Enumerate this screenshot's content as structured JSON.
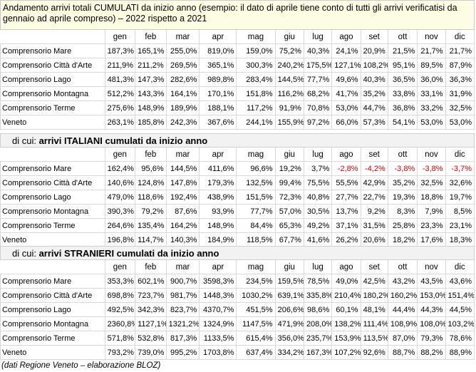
{
  "title": "Andamento arrivi totali CUMULATI da inizio anno (esempio: il dato di aprile tiene conto di tutti gli arrivi verificatisi da gennaio ad aprile compreso) – 2022 rispetto a 2021",
  "months": [
    "gen",
    "feb",
    "mar",
    "apr",
    "mag",
    "giu",
    "lug",
    "ago",
    "set",
    "ott",
    "nov",
    "dic"
  ],
  "tables": [
    {
      "section_prefix": "",
      "section_bold": "",
      "rows": [
        {
          "name": "Comprensorio Mare",
          "values": [
            "187,3%",
            "165,1%",
            "255,0%",
            "819,0%",
            "159,0%",
            "75,2%",
            "40,3%",
            "24,1%",
            "20,9%",
            "21,5%",
            "21,7%",
            "21,7%"
          ]
        },
        {
          "name": "Comprensorio Città d'Arte",
          "values": [
            "211,9%",
            "211,2%",
            "269,5%",
            "365,1%",
            "300,3%",
            "240,2%",
            "175,5%",
            "127,1%",
            "108,2%",
            "95,1%",
            "89,5%",
            "87,9%"
          ]
        },
        {
          "name": "Comprensorio Lago",
          "values": [
            "481,3%",
            "147,3%",
            "282,6%",
            "989,8%",
            "283,4%",
            "144,5%",
            "77,7%",
            "49,6%",
            "40,3%",
            "36,5%",
            "36,0%",
            "36,3%"
          ]
        },
        {
          "name": "Comprensorio Montagna",
          "values": [
            "512,2%",
            "143,3%",
            "164,1%",
            "170,1%",
            "151,8%",
            "116,2%",
            "68,2%",
            "41,7%",
            "35,2%",
            "33,8%",
            "33,1%",
            "31,9%"
          ]
        },
        {
          "name": "Comprensorio Terme",
          "values": [
            "275,6%",
            "148,9%",
            "189,9%",
            "188,1%",
            "117,2%",
            "91,9%",
            "70,8%",
            "53,0%",
            "44,7%",
            "36,8%",
            "33,2%",
            "32,5%"
          ]
        },
        {
          "name": "Veneto",
          "values": [
            "263,1%",
            "185,8%",
            "242,3%",
            "367,6%",
            "244,1%",
            "155,9%",
            "97,2%",
            "66,0%",
            "57,3%",
            "54,1%",
            "53,0%",
            "53,0%"
          ]
        }
      ]
    },
    {
      "section_prefix": "di cui: ",
      "section_bold": "arrivi ITALIANI cumulati da inizio anno",
      "rows": [
        {
          "name": "Comprensorio Mare",
          "values": [
            "162,4%",
            "95,6%",
            "144,5%",
            "411,6%",
            "96,6%",
            "19,2%",
            "3,7%",
            "-2,8%",
            "-4,2%",
            "-3,8%",
            "-3,8%",
            "-3,7%"
          ]
        },
        {
          "name": "Comprensorio Città d'Arte",
          "values": [
            "140,6%",
            "124,8%",
            "147,8%",
            "179,3%",
            "132,5%",
            "99,4%",
            "75,5%",
            "55,5%",
            "42,9%",
            "35,2%",
            "32,5%",
            "32,6%"
          ]
        },
        {
          "name": "Comprensorio Lago",
          "values": [
            "479,0%",
            "118,6%",
            "192,4%",
            "438,9%",
            "151,5%",
            "72,3%",
            "40,8%",
            "27,7%",
            "22,7%",
            "19,3%",
            "18,8%",
            "19,7%"
          ]
        },
        {
          "name": "Comprensorio Montagna",
          "values": [
            "390,3%",
            "79,2%",
            "87,6%",
            "93,9%",
            "77,7%",
            "57,0%",
            "30,5%",
            "13,7%",
            "9,2%",
            "8,3%",
            "7,9%",
            "8,5%"
          ]
        },
        {
          "name": "Comprensorio Terme",
          "values": [
            "264,6%",
            "135,4%",
            "164,2%",
            "148,9%",
            "84,4%",
            "65,3%",
            "49,2%",
            "37,1%",
            "31,5%",
            "25,8%",
            "23,3%",
            "23,1%"
          ]
        },
        {
          "name": "Veneto",
          "values": [
            "196,8%",
            "114,7%",
            "140,3%",
            "184,9%",
            "118,5%",
            "67,7%",
            "41,6%",
            "26,2%",
            "20,6%",
            "18,2%",
            "17,6%",
            "18,3%"
          ]
        }
      ]
    },
    {
      "section_prefix": "di cui: ",
      "section_bold": "arrivi STRANIERI cumulati da inizio anno",
      "rows": [
        {
          "name": "Comprensorio Mare",
          "values": [
            "353,3%",
            "602,1%",
            "900,7%",
            "3598,3%",
            "234,5%",
            "159,5%",
            "78,5%",
            "49,0%",
            "42,5%",
            "43,2%",
            "43,5%",
            "43,6%"
          ]
        },
        {
          "name": "Comprensorio Città d'Arte",
          "values": [
            "698,8%",
            "723,7%",
            "981,7%",
            "1448,3%",
            "1030,2%",
            "639,1%",
            "335,8%",
            "210,4%",
            "180,2%",
            "160,2%",
            "153,0%",
            "151,4%"
          ]
        },
        {
          "name": "Comprensorio Lago",
          "values": [
            "492,5%",
            "342,3%",
            "823,7%",
            "4370,7%",
            "451,5%",
            "206,6%",
            "98,6%",
            "60,1%",
            "48,1%",
            "44,4%",
            "44,3%",
            "44,5%"
          ]
        },
        {
          "name": "Comprensorio Montagna",
          "values": [
            "2360,8%",
            "1127,1%",
            "1321,2%",
            "1324,9%",
            "1147,5%",
            "471,9%",
            "208,0%",
            "138,2%",
            "111,4%",
            "108,9%",
            "108,0%",
            "103,2%"
          ]
        },
        {
          "name": "Comprensorio Terme",
          "values": [
            "571,8%",
            "532,8%",
            "817,3%",
            "1133,5%",
            "615,4%",
            "356,0%",
            "235,7%",
            "153,9%",
            "113,5%",
            "87,0%",
            "79,3%",
            "78,6%"
          ]
        },
        {
          "name": "Veneto",
          "values": [
            "793,2%",
            "739,0%",
            "995,2%",
            "1703,8%",
            "637,4%",
            "334,2%",
            "167,3%",
            "107,2%",
            "92,6%",
            "88,7%",
            "88,2%",
            "88,9%"
          ]
        }
      ]
    }
  ],
  "footer": "(dati Regione Veneto – elaborazione BLOZ)",
  "colors": {
    "title_bg": "#fdfde3",
    "section_bg": "#f2f2f2",
    "negative": "#e00000"
  }
}
